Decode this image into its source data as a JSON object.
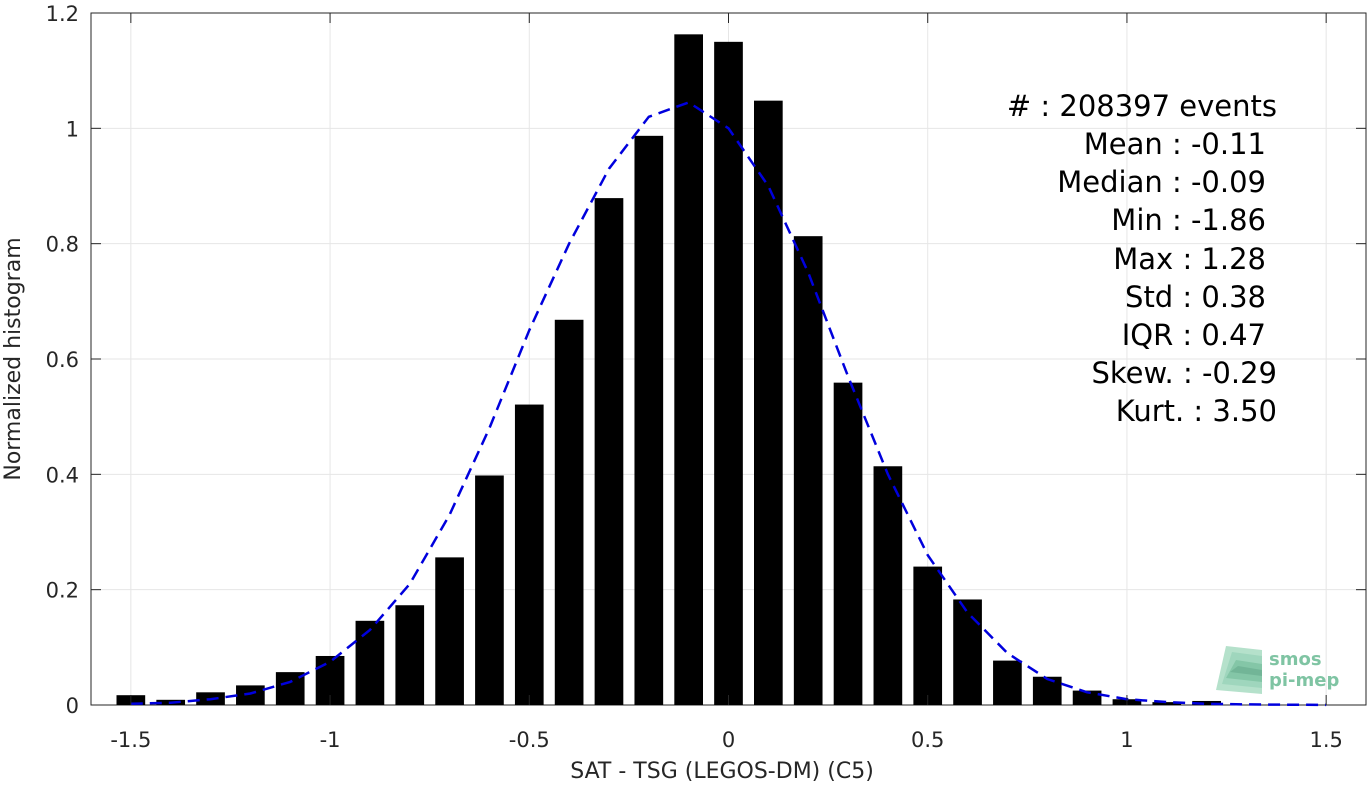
{
  "chart_data": {
    "type": "bar",
    "title": "",
    "xlabel": "SAT - TSG (LEGOS-DM) (C5)",
    "ylabel": "Normalized histogram",
    "xlim": [
      -1.6,
      1.6
    ],
    "ylim": [
      0,
      1.2
    ],
    "grid": true,
    "xticks": [
      -1.5,
      -1,
      -0.5,
      0,
      0.5,
      1,
      1.5
    ],
    "xtick_labels": [
      "-1.5",
      "-1",
      "-0.5",
      "0",
      "0.5",
      "1",
      "1.5"
    ],
    "yticks": [
      0,
      0.2,
      0.4,
      0.6,
      0.8,
      1,
      1.2
    ],
    "ytick_labels": [
      "0",
      "0.2",
      "0.4",
      "0.6",
      "0.8",
      "1",
      "1.2"
    ],
    "bin_width": 0.1,
    "bar_color": "#000000",
    "x": [
      -1.5,
      -1.4,
      -1.3,
      -1.2,
      -1.1,
      -1.0,
      -0.9,
      -0.8,
      -0.7,
      -0.6,
      -0.5,
      -0.4,
      -0.3,
      -0.2,
      -0.1,
      0.0,
      0.1,
      0.2,
      0.3,
      0.4,
      0.5,
      0.6,
      0.7,
      0.8,
      0.9,
      1.0,
      1.1,
      1.2
    ],
    "values": [
      0.017,
      0.009,
      0.022,
      0.034,
      0.057,
      0.085,
      0.146,
      0.173,
      0.256,
      0.398,
      0.521,
      0.668,
      0.879,
      0.987,
      1.163,
      1.15,
      1.048,
      0.813,
      0.559,
      0.414,
      0.24,
      0.183,
      0.077,
      0.049,
      0.025,
      0.01,
      0.005,
      0.007
    ],
    "fit_curve": {
      "style": "dashed",
      "color": "#0000dd",
      "x": [
        -1.5,
        -1.4,
        -1.3,
        -1.2,
        -1.1,
        -1.0,
        -0.9,
        -0.8,
        -0.7,
        -0.6,
        -0.5,
        -0.4,
        -0.3,
        -0.2,
        -0.1,
        0.0,
        0.1,
        0.2,
        0.3,
        0.4,
        0.5,
        0.6,
        0.7,
        0.8,
        0.9,
        1.0,
        1.1,
        1.2,
        1.3,
        1.4,
        1.5
      ],
      "y": [
        0.002,
        0.004,
        0.01,
        0.02,
        0.04,
        0.075,
        0.13,
        0.21,
        0.33,
        0.48,
        0.65,
        0.8,
        0.93,
        1.02,
        1.045,
        1.0,
        0.9,
        0.75,
        0.57,
        0.4,
        0.26,
        0.16,
        0.09,
        0.045,
        0.022,
        0.01,
        0.005,
        0.002,
        0.001,
        0.0005,
        0.0002
      ]
    },
    "stats": [
      {
        "label": "#  : 208397 events"
      },
      {
        "label": "Mean : -0.11"
      },
      {
        "label": "Median : -0.09"
      },
      {
        "label": "Min : -1.86"
      },
      {
        "label": "Max : 1.28"
      },
      {
        "label": "Std : 0.38"
      },
      {
        "label": "IQR : 0.47"
      },
      {
        "label": "Skew. : -0.29"
      },
      {
        "label": "Kurt. : 3.50"
      }
    ]
  },
  "logo": {
    "line1": "smos",
    "line2": "pi-mep",
    "color": "#7fc4a3"
  }
}
